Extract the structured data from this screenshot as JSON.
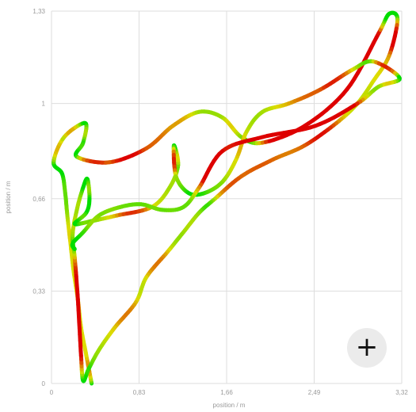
{
  "chart_data": {
    "type": "scatter",
    "title": "",
    "xlabel": "position / m",
    "ylabel": "position / m",
    "xlim": [
      0,
      3.32
    ],
    "ylim": [
      0,
      1.33
    ],
    "x_ticks": [
      "0",
      "0,83",
      "1,66",
      "2,49",
      "3,32"
    ],
    "y_ticks": [
      "0",
      "0,33",
      "0,66",
      "1",
      "1,33"
    ],
    "x_tick_values": [
      0,
      0.83,
      1.66,
      2.49,
      3.32
    ],
    "y_tick_values": [
      0,
      0.33,
      0.66,
      1,
      1.33
    ],
    "grid": true,
    "color_scale": [
      "#00dd00",
      "#dddd00",
      "#dd0000"
    ],
    "trajectory": [
      [
        0.38,
        0.0
      ],
      [
        0.33,
        0.1
      ],
      [
        0.28,
        0.2
      ],
      [
        0.25,
        0.3
      ],
      [
        0.21,
        0.4
      ],
      [
        0.18,
        0.5
      ],
      [
        0.15,
        0.6
      ],
      [
        0.13,
        0.68
      ],
      [
        0.1,
        0.75
      ],
      [
        0.02,
        0.79
      ],
      [
        0.12,
        0.88
      ],
      [
        0.32,
        0.93
      ],
      [
        0.3,
        0.86
      ],
      [
        0.24,
        0.81
      ],
      [
        0.55,
        0.79
      ],
      [
        0.9,
        0.84
      ],
      [
        1.15,
        0.92
      ],
      [
        1.4,
        0.97
      ],
      [
        1.62,
        0.95
      ],
      [
        1.8,
        0.88
      ],
      [
        2.0,
        0.86
      ],
      [
        2.4,
        0.92
      ],
      [
        2.8,
        1.05
      ],
      [
        3.1,
        1.25
      ],
      [
        3.2,
        1.32
      ],
      [
        3.28,
        1.3
      ],
      [
        3.2,
        1.17
      ],
      [
        3.05,
        1.08
      ],
      [
        2.9,
        1.0
      ],
      [
        2.7,
        0.93
      ],
      [
        2.4,
        0.85
      ],
      [
        2.1,
        0.8
      ],
      [
        1.8,
        0.74
      ],
      [
        1.55,
        0.66
      ],
      [
        1.4,
        0.61
      ],
      [
        1.25,
        0.54
      ],
      [
        1.1,
        0.47
      ],
      [
        0.9,
        0.38
      ],
      [
        0.8,
        0.29
      ],
      [
        0.6,
        0.2
      ],
      [
        0.45,
        0.12
      ],
      [
        0.35,
        0.05
      ],
      [
        0.3,
        0.01
      ],
      [
        0.28,
        0.1
      ],
      [
        0.25,
        0.3
      ],
      [
        0.22,
        0.45
      ],
      [
        0.2,
        0.53
      ],
      [
        0.24,
        0.62
      ],
      [
        0.3,
        0.7
      ],
      [
        0.34,
        0.73
      ],
      [
        0.36,
        0.66
      ],
      [
        0.33,
        0.61
      ],
      [
        0.22,
        0.57
      ],
      [
        0.38,
        0.58
      ],
      [
        0.62,
        0.6
      ],
      [
        0.95,
        0.63
      ],
      [
        1.12,
        0.7
      ],
      [
        1.2,
        0.78
      ],
      [
        1.16,
        0.85
      ],
      [
        1.18,
        0.74
      ],
      [
        1.3,
        0.68
      ],
      [
        1.45,
        0.68
      ],
      [
        1.62,
        0.72
      ],
      [
        1.75,
        0.8
      ],
      [
        1.85,
        0.9
      ],
      [
        2.0,
        0.97
      ],
      [
        2.25,
        1.0
      ],
      [
        2.55,
        1.05
      ],
      [
        2.85,
        1.12
      ],
      [
        3.05,
        1.15
      ],
      [
        3.3,
        1.09
      ],
      [
        3.1,
        1.06
      ],
      [
        2.9,
        1.0
      ],
      [
        2.5,
        0.92
      ],
      [
        2.0,
        0.88
      ],
      [
        1.62,
        0.83
      ],
      [
        1.4,
        0.7
      ],
      [
        1.25,
        0.63
      ],
      [
        1.05,
        0.62
      ],
      [
        0.85,
        0.64
      ],
      [
        0.65,
        0.63
      ],
      [
        0.45,
        0.6
      ],
      [
        0.3,
        0.54
      ],
      [
        0.2,
        0.5
      ],
      [
        0.22,
        0.48
      ]
    ]
  },
  "controls": {
    "add_glyph": "+"
  }
}
